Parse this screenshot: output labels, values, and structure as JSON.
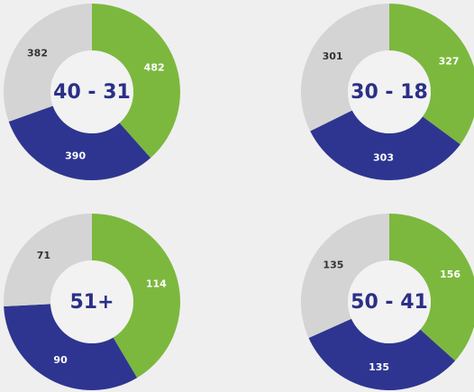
{
  "chart_data": [
    {
      "type": "donut",
      "title": "40 - 31",
      "values": [
        482,
        390,
        382
      ],
      "colors": [
        "#7cb83e",
        "#2e3590",
        "#d4d4d4"
      ]
    },
    {
      "type": "donut",
      "title": "30 - 18",
      "values": [
        327,
        303,
        301
      ],
      "colors": [
        "#7cb83e",
        "#2e3590",
        "#d4d4d4"
      ]
    },
    {
      "type": "donut",
      "title": "51+",
      "values": [
        114,
        90,
        71
      ],
      "colors": [
        "#7cb83e",
        "#2e3590",
        "#d4d4d4"
      ]
    },
    {
      "type": "donut",
      "title": "50 - 41",
      "values": [
        156,
        135,
        135
      ],
      "colors": [
        "#7cb83e",
        "#2e3590",
        "#d4d4d4"
      ]
    }
  ]
}
